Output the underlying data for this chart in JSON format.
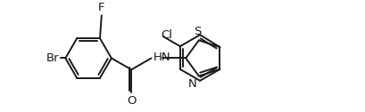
{
  "background": "#ffffff",
  "bond_color": "#1a1a1a",
  "label_color": "#1a1a1a",
  "linewidth": 1.4,
  "figsize": [
    4.1,
    1.26
  ],
  "dpi": 100,
  "xlim": [
    0,
    410
  ],
  "ylim": [
    0,
    126
  ]
}
